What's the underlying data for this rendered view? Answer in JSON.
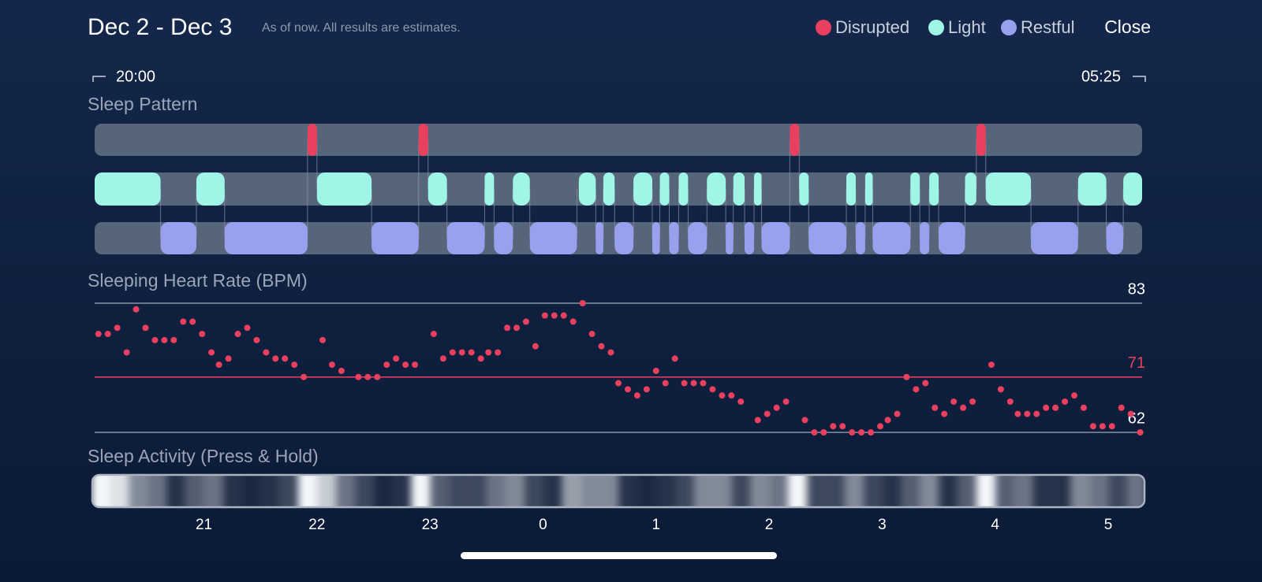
{
  "header": {
    "title": "Dec 2 - Dec 3",
    "subtitle": "As of now. All results are estimates.",
    "close": "Close"
  },
  "chart_data": [
    {
      "type": "timeline",
      "title": "Sleep Pattern",
      "start_label": "20:00",
      "end_label": "05:25",
      "xlim": [
        2,
        558
      ],
      "series": [
        {
          "name": "Disrupted",
          "color": "#e8405e",
          "segments": [
            [
              115,
              120
            ],
            [
              174,
              179
            ],
            [
              371,
              376
            ],
            [
              470,
              475
            ]
          ]
        },
        {
          "name": "Light",
          "color": "#9ff5e6",
          "segments": [
            [
              2,
              37
            ],
            [
              56,
              71
            ],
            [
              120,
              149
            ],
            [
              179,
              189
            ],
            [
              209,
              214
            ],
            [
              224,
              233
            ],
            [
              259,
              268
            ],
            [
              272,
              278
            ],
            [
              288,
              298
            ],
            [
              302,
              307
            ],
            [
              312,
              317
            ],
            [
              327,
              337
            ],
            [
              341,
              347
            ],
            [
              352,
              356
            ],
            [
              376,
              381
            ],
            [
              401,
              406
            ],
            [
              411,
              415
            ],
            [
              435,
              440
            ],
            [
              445,
              450
            ],
            [
              464,
              470
            ],
            [
              475,
              499
            ],
            [
              524,
              539
            ],
            [
              548,
              558
            ]
          ]
        },
        {
          "name": "Restful",
          "color": "#9aa0f0",
          "segments": [
            [
              37,
              56
            ],
            [
              71,
              115
            ],
            [
              149,
              174
            ],
            [
              189,
              209
            ],
            [
              214,
              224
            ],
            [
              233,
              258
            ],
            [
              268,
              272
            ],
            [
              278,
              288
            ],
            [
              298,
              302
            ],
            [
              307,
              312
            ],
            [
              317,
              327
            ],
            [
              337,
              341
            ],
            [
              347,
              352
            ],
            [
              356,
              371
            ],
            [
              381,
              401
            ],
            [
              406,
              411
            ],
            [
              415,
              435
            ],
            [
              440,
              445
            ],
            [
              450,
              464
            ],
            [
              499,
              524
            ],
            [
              539,
              548
            ]
          ]
        }
      ]
    },
    {
      "type": "scatter",
      "title": "Sleeping Heart Rate (BPM)",
      "color": "#e8405e",
      "xlim": [
        2,
        558
      ],
      "ylim": [
        62,
        83
      ],
      "yticks": [
        62,
        83
      ],
      "average": 71,
      "average_color": "#e8405e",
      "x": [
        4,
        9,
        14,
        19,
        24,
        29,
        34,
        39,
        44,
        49,
        54,
        59,
        64,
        68,
        73,
        78,
        83,
        88,
        93,
        98,
        103,
        108,
        113,
        123,
        128,
        133,
        142,
        147,
        152,
        157,
        162,
        167,
        172,
        182,
        187,
        192,
        197,
        202,
        207,
        211,
        216,
        221,
        226,
        231,
        236,
        241,
        246,
        251,
        256,
        261,
        266,
        271,
        276,
        280,
        285,
        290,
        295,
        300,
        305,
        310,
        315,
        320,
        325,
        330,
        335,
        340,
        345,
        354,
        359,
        364,
        369,
        379,
        384,
        389,
        394,
        399,
        404,
        409,
        414,
        419,
        423,
        428,
        433,
        438,
        443,
        448,
        453,
        458,
        463,
        468,
        478,
        483,
        488,
        492,
        497,
        502,
        507,
        512,
        517,
        522,
        527,
        532,
        537,
        542,
        547,
        552,
        557
      ],
      "values": [
        78,
        78,
        79,
        75,
        82,
        79,
        77,
        77,
        77,
        80,
        80,
        78,
        75,
        73,
        74,
        78,
        79,
        77,
        75,
        74,
        74,
        73,
        71,
        77,
        73,
        72,
        71,
        71,
        71,
        73,
        74,
        73,
        73,
        78,
        74,
        75,
        75,
        75,
        74,
        75,
        75,
        79,
        79,
        80,
        76,
        81,
        81,
        81,
        80,
        83,
        78,
        76,
        75,
        70,
        69,
        68,
        69,
        72,
        70,
        74,
        70,
        70,
        70,
        69,
        68,
        68,
        67,
        64,
        65,
        66,
        67,
        64,
        62,
        62,
        63,
        63,
        62,
        62,
        62,
        63,
        64,
        65,
        71,
        69,
        70,
        66,
        65,
        67,
        66,
        67,
        73,
        69,
        67,
        65,
        65,
        65,
        66,
        66,
        67,
        68,
        66,
        63,
        63,
        63,
        66,
        65,
        62
      ]
    },
    {
      "type": "heatmap",
      "title": "Sleep Activity (Press & Hold)",
      "xlim": [
        2,
        558
      ],
      "x": [
        5,
        15,
        25,
        35,
        45,
        55,
        65,
        75,
        85,
        95,
        105,
        115,
        125,
        135,
        145,
        155,
        165,
        175,
        185,
        195,
        205,
        215,
        225,
        235,
        245,
        255,
        265,
        275,
        285,
        295,
        305,
        315,
        325,
        335,
        345,
        355,
        365,
        375,
        385,
        395,
        405,
        415,
        425,
        435,
        445,
        455,
        465,
        475,
        485,
        495,
        505,
        515,
        525,
        535,
        545,
        555
      ],
      "values": [
        1.0,
        0.9,
        0.5,
        0.4,
        0.1,
        0.3,
        0.4,
        0.1,
        0.05,
        0.1,
        0.2,
        1.0,
        0.8,
        0.4,
        0.2,
        0.05,
        0.1,
        1.0,
        0.3,
        0.2,
        0.2,
        0.4,
        0.5,
        0.2,
        0.1,
        0.6,
        0.5,
        0.5,
        0.1,
        0.05,
        0.1,
        0.2,
        0.5,
        0.5,
        0.2,
        0.5,
        0.4,
        1.0,
        0.2,
        0.2,
        0.5,
        0.2,
        0.1,
        0.3,
        0.5,
        0.1,
        0.3,
        1.0,
        0.3,
        0.4,
        0.1,
        0.1,
        0.5,
        0.4,
        0.2,
        0.4
      ],
      "xticks": [
        {
          "value": 60,
          "label": "21"
        },
        {
          "value": 120,
          "label": "22"
        },
        {
          "value": 180,
          "label": "23"
        },
        {
          "value": 240,
          "label": "0"
        },
        {
          "value": 300,
          "label": "1"
        },
        {
          "value": 360,
          "label": "2"
        },
        {
          "value": 420,
          "label": "3"
        },
        {
          "value": 480,
          "label": "4"
        },
        {
          "value": 540,
          "label": "5"
        }
      ]
    }
  ]
}
